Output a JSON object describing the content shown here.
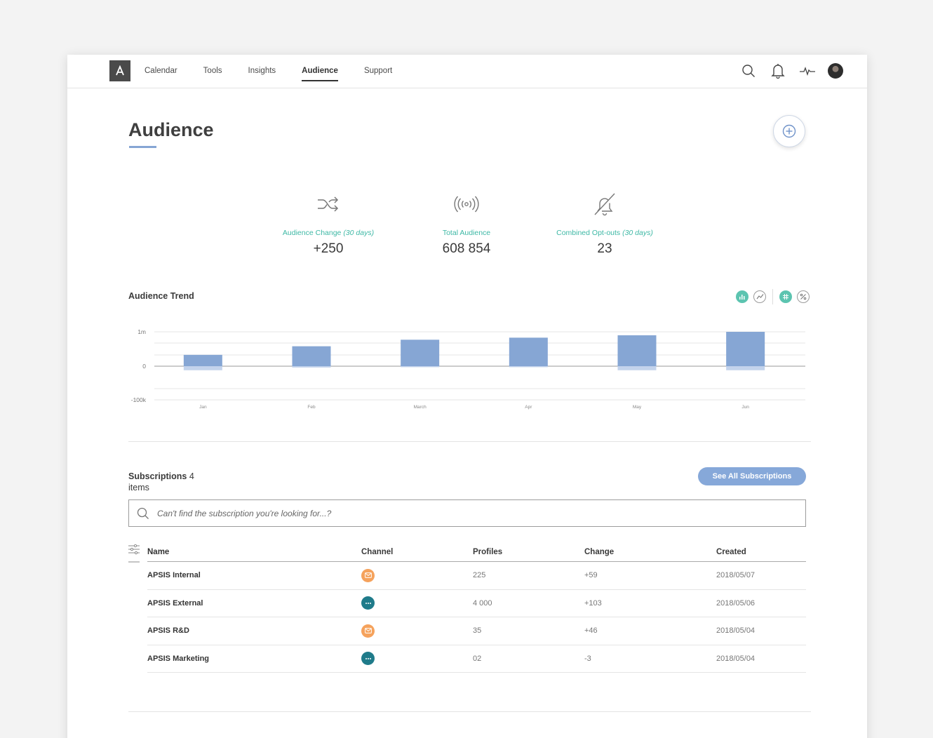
{
  "nav": {
    "items": [
      {
        "label": "Calendar",
        "active": false
      },
      {
        "label": "Tools",
        "active": false
      },
      {
        "label": "Insights",
        "active": false
      },
      {
        "label": "Audience",
        "active": true
      },
      {
        "label": "Support",
        "active": false
      }
    ],
    "icons": [
      "search-icon",
      "bell-icon",
      "pulse-icon",
      "avatar"
    ]
  },
  "page": {
    "title": "Audience",
    "add_icon": "plus-circle-icon"
  },
  "stats": [
    {
      "icon": "shuffle-icon",
      "label": "Audience Change",
      "qualifier": "(30 days)",
      "value": "+250"
    },
    {
      "icon": "broadcast-icon",
      "label": "Total Audience",
      "qualifier": "",
      "value": "608 854"
    },
    {
      "icon": "bell-off-icon",
      "label": "Combined Opt-outs",
      "qualifier": "(30 days)",
      "value": "23"
    }
  ],
  "trend": {
    "title": "Audience Trend",
    "toggles": [
      {
        "icon": "bar-chart-icon",
        "active": true
      },
      {
        "icon": "line-chart-icon",
        "active": false
      },
      {
        "icon": "hash-icon",
        "active": true
      },
      {
        "icon": "percent-icon",
        "active": false
      }
    ]
  },
  "chart_data": {
    "type": "bar",
    "categories": [
      "Jan",
      "Feb",
      "March",
      "Apr",
      "May",
      "Jun"
    ],
    "series": [
      {
        "values": [
          330000,
          580000,
          770000,
          830000,
          900000,
          1000000
        ]
      },
      {
        "values": [
          -12000,
          -4000,
          -3000,
          -3000,
          -12000,
          -12000
        ]
      }
    ],
    "y_tick_labels": [
      "1m",
      "0",
      "-100k"
    ],
    "colors": [
      "#86a6d4",
      "#c3d3ec"
    ],
    "grid": true
  },
  "subscriptions": {
    "title": "Subscriptions",
    "count_text": "4 items",
    "see_all_label": "See All Subscriptions",
    "search_placeholder": "Can't find the subscription you're looking for...?",
    "columns": [
      "Name",
      "Channel",
      "Profiles",
      "Change",
      "Created"
    ],
    "rows": [
      {
        "name": "APSIS Internal",
        "channel": "email",
        "profiles": "225",
        "change": "+59",
        "created": "2018/05/07"
      },
      {
        "name": "APSIS External",
        "channel": "sms",
        "profiles": "4 000",
        "change": "+103",
        "created": "2018/05/06"
      },
      {
        "name": "APSIS R&D",
        "channel": "email",
        "profiles": "35",
        "change": "+46",
        "created": "2018/05/04"
      },
      {
        "name": "APSIS Marketing",
        "channel": "sms",
        "profiles": "02",
        "change": "-3",
        "created": "2018/05/04"
      }
    ]
  },
  "colors": {
    "accent": "#86a6d4",
    "teal": "#3eb8a5",
    "email": "#f5a25c",
    "sms": "#1f7b8a"
  }
}
